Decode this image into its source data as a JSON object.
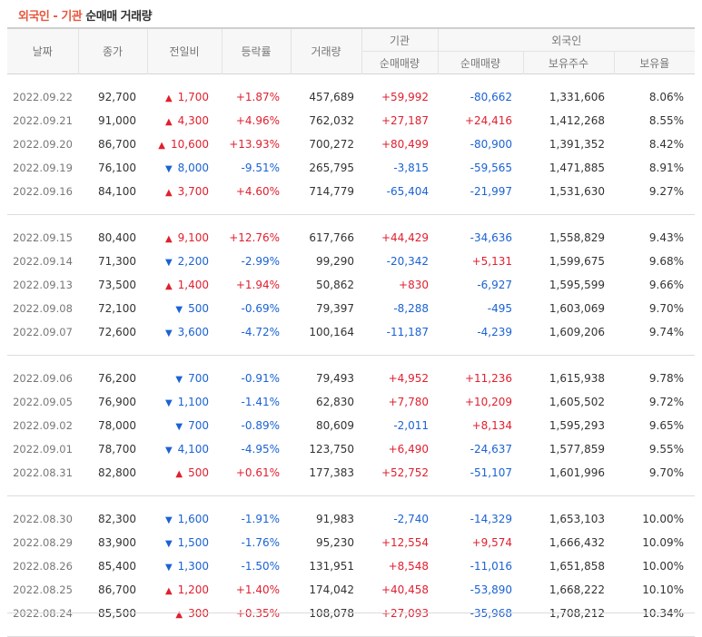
{
  "title": {
    "part1": "외국인 - 기관",
    "part2": " 순매매 거래량"
  },
  "headers": {
    "date": "날짜",
    "close": "종가",
    "change": "전일비",
    "rate": "등락률",
    "volume": "거래량",
    "inst_group": "기관",
    "inst_net": "순매매량",
    "foreign_group": "외국인",
    "foreign_net": "순매매량",
    "foreign_hold": "보유주수",
    "foreign_ratio": "보유율"
  },
  "colors": {
    "up": "#e01f2e",
    "down": "#1a62d4",
    "accent": "#e8573c"
  },
  "groups": [
    [
      {
        "date": "2022.09.22",
        "close": "92,700",
        "dir": "up",
        "change": "1,700",
        "rate": "+1.87%",
        "volume": "457,689",
        "inst": "+59,992",
        "forn": "-80,662",
        "hold": "1,331,606",
        "ratio": "8.06%"
      },
      {
        "date": "2022.09.21",
        "close": "91,000",
        "dir": "up",
        "change": "4,300",
        "rate": "+4.96%",
        "volume": "762,032",
        "inst": "+27,187",
        "forn": "+24,416",
        "hold": "1,412,268",
        "ratio": "8.55%"
      },
      {
        "date": "2022.09.20",
        "close": "86,700",
        "dir": "up",
        "change": "10,600",
        "rate": "+13.93%",
        "volume": "700,272",
        "inst": "+80,499",
        "forn": "-80,900",
        "hold": "1,391,352",
        "ratio": "8.42%"
      },
      {
        "date": "2022.09.19",
        "close": "76,100",
        "dir": "down",
        "change": "8,000",
        "rate": "-9.51%",
        "volume": "265,795",
        "inst": "-3,815",
        "forn": "-59,565",
        "hold": "1,471,885",
        "ratio": "8.91%"
      },
      {
        "date": "2022.09.16",
        "close": "84,100",
        "dir": "up",
        "change": "3,700",
        "rate": "+4.60%",
        "volume": "714,779",
        "inst": "-65,404",
        "forn": "-21,997",
        "hold": "1,531,630",
        "ratio": "9.27%"
      }
    ],
    [
      {
        "date": "2022.09.15",
        "close": "80,400",
        "dir": "up",
        "change": "9,100",
        "rate": "+12.76%",
        "volume": "617,766",
        "inst": "+44,429",
        "forn": "-34,636",
        "hold": "1,558,829",
        "ratio": "9.43%"
      },
      {
        "date": "2022.09.14",
        "close": "71,300",
        "dir": "down",
        "change": "2,200",
        "rate": "-2.99%",
        "volume": "99,290",
        "inst": "-20,342",
        "forn": "+5,131",
        "hold": "1,599,675",
        "ratio": "9.68%"
      },
      {
        "date": "2022.09.13",
        "close": "73,500",
        "dir": "up",
        "change": "1,400",
        "rate": "+1.94%",
        "volume": "50,862",
        "inst": "+830",
        "forn": "-6,927",
        "hold": "1,595,599",
        "ratio": "9.66%"
      },
      {
        "date": "2022.09.08",
        "close": "72,100",
        "dir": "down",
        "change": "500",
        "rate": "-0.69%",
        "volume": "79,397",
        "inst": "-8,288",
        "forn": "-495",
        "hold": "1,603,069",
        "ratio": "9.70%"
      },
      {
        "date": "2022.09.07",
        "close": "72,600",
        "dir": "down",
        "change": "3,600",
        "rate": "-4.72%",
        "volume": "100,164",
        "inst": "-11,187",
        "forn": "-4,239",
        "hold": "1,609,206",
        "ratio": "9.74%"
      }
    ],
    [
      {
        "date": "2022.09.06",
        "close": "76,200",
        "dir": "down",
        "change": "700",
        "rate": "-0.91%",
        "volume": "79,493",
        "inst": "+4,952",
        "forn": "+11,236",
        "hold": "1,615,938",
        "ratio": "9.78%"
      },
      {
        "date": "2022.09.05",
        "close": "76,900",
        "dir": "down",
        "change": "1,100",
        "rate": "-1.41%",
        "volume": "62,830",
        "inst": "+7,780",
        "forn": "+10,209",
        "hold": "1,605,502",
        "ratio": "9.72%"
      },
      {
        "date": "2022.09.02",
        "close": "78,000",
        "dir": "down",
        "change": "700",
        "rate": "-0.89%",
        "volume": "80,609",
        "inst": "-2,011",
        "forn": "+8,134",
        "hold": "1,595,293",
        "ratio": "9.65%"
      },
      {
        "date": "2022.09.01",
        "close": "78,700",
        "dir": "down",
        "change": "4,100",
        "rate": "-4.95%",
        "volume": "123,750",
        "inst": "+6,490",
        "forn": "-24,637",
        "hold": "1,577,859",
        "ratio": "9.55%"
      },
      {
        "date": "2022.08.31",
        "close": "82,800",
        "dir": "up",
        "change": "500",
        "rate": "+0.61%",
        "volume": "177,383",
        "inst": "+52,752",
        "forn": "-51,107",
        "hold": "1,601,996",
        "ratio": "9.70%"
      }
    ],
    [
      {
        "date": "2022.08.30",
        "close": "82,300",
        "dir": "down",
        "change": "1,600",
        "rate": "-1.91%",
        "volume": "91,983",
        "inst": "-2,740",
        "forn": "-14,329",
        "hold": "1,653,103",
        "ratio": "10.00%"
      },
      {
        "date": "2022.08.29",
        "close": "83,900",
        "dir": "down",
        "change": "1,500",
        "rate": "-1.76%",
        "volume": "95,230",
        "inst": "+12,554",
        "forn": "+9,574",
        "hold": "1,666,432",
        "ratio": "10.09%"
      },
      {
        "date": "2022.08.26",
        "close": "85,400",
        "dir": "down",
        "change": "1,300",
        "rate": "-1.50%",
        "volume": "131,951",
        "inst": "+8,548",
        "forn": "-11,016",
        "hold": "1,651,858",
        "ratio": "10.00%"
      },
      {
        "date": "2022.08.25",
        "close": "86,700",
        "dir": "up",
        "change": "1,200",
        "rate": "+1.40%",
        "volume": "174,042",
        "inst": "+40,458",
        "forn": "-53,890",
        "hold": "1,668,222",
        "ratio": "10.10%"
      },
      {
        "date": "2022.08.24",
        "close": "85,500",
        "dir": "up",
        "change": "300",
        "rate": "+0.35%",
        "volume": "108,078",
        "inst": "+27,093",
        "forn": "-35,968",
        "hold": "1,708,212",
        "ratio": "10.34%"
      }
    ]
  ]
}
